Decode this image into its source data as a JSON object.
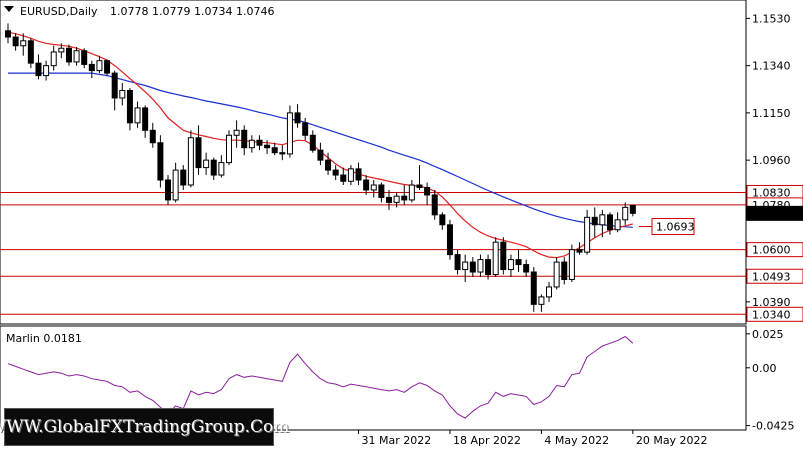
{
  "app": {
    "symbol_title": "EURUSD,Daily",
    "ohlc_text": "1.0778 1.0779 1.0734 1.0746",
    "indicator_title": "Marlin 0.0181",
    "watermark_text": "WWW.GlobalFXTradingGroup.Com"
  },
  "colors": {
    "bull": "#ffffff",
    "bear": "#000000",
    "ma_fast": "#e02020",
    "ma_slow": "#1a2fd0",
    "level": "#cc0000",
    "oscillator": "#8a1f9e"
  },
  "chart_data": [
    {
      "type": "candlestick",
      "title": "EURUSD,Daily",
      "ylim": [
        1.0305,
        1.16
      ],
      "y_ticks": [
        "1.1530",
        "1.1340",
        "1.1150",
        "1.0960",
        "1.0390"
      ],
      "x_ticks": [
        {
          "label": "31 Mar 2022",
          "index": 46
        },
        {
          "label": "18 Apr 2022",
          "index": 58
        },
        {
          "label": "4 May 2022",
          "index": 70
        },
        {
          "label": "20 May 2022",
          "index": 82
        }
      ],
      "price_labels": [
        {
          "label": "1.0830",
          "value": 1.083,
          "style": "level"
        },
        {
          "label": "1.0780",
          "value": 1.078,
          "style": "level"
        },
        {
          "label": "1.0746",
          "value": 1.0746,
          "style": "current"
        },
        {
          "label": "1.0600",
          "value": 1.06,
          "style": "level"
        },
        {
          "label": "1.0493",
          "value": 1.0493,
          "style": "level"
        },
        {
          "label": "1.0340",
          "value": 1.034,
          "style": "level"
        }
      ],
      "levels": [
        1.083,
        1.078,
        1.06,
        1.0493,
        1.034
      ],
      "annotation": {
        "label": "1.0693",
        "value": 1.0693
      },
      "candles": [
        [
          1.148,
          1.151,
          1.143,
          1.1455
        ],
        [
          1.1455,
          1.147,
          1.14,
          1.142
        ],
        [
          1.142,
          1.147,
          1.138,
          1.144
        ],
        [
          1.144,
          1.145,
          1.133,
          1.135
        ],
        [
          1.135,
          1.1385,
          1.1285,
          1.13
        ],
        [
          1.13,
          1.136,
          1.128,
          1.134
        ],
        [
          1.134,
          1.142,
          1.132,
          1.1395
        ],
        [
          1.1395,
          1.143,
          1.137,
          1.141
        ],
        [
          1.141,
          1.1425,
          1.134,
          1.1355
        ],
        [
          1.1355,
          1.1415,
          1.134,
          1.14
        ],
        [
          1.14,
          1.141,
          1.133,
          1.1345
        ],
        [
          1.1345,
          1.136,
          1.129,
          1.132
        ],
        [
          1.132,
          1.138,
          1.131,
          1.136
        ],
        [
          1.136,
          1.1365,
          1.13,
          1.131
        ],
        [
          1.131,
          1.132,
          1.116,
          1.121
        ],
        [
          1.121,
          1.127,
          1.118,
          1.124
        ],
        [
          1.124,
          1.125,
          1.108,
          1.111
        ],
        [
          1.111,
          1.1195,
          1.109,
          1.117
        ],
        [
          1.117,
          1.118,
          1.105,
          1.108
        ],
        [
          1.108,
          1.111,
          1.101,
          1.103
        ],
        [
          1.103,
          1.106,
          1.085,
          1.088
        ],
        [
          1.088,
          1.09,
          1.078,
          1.08
        ],
        [
          1.08,
          1.095,
          1.079,
          1.092
        ],
        [
          1.092,
          1.094,
          1.084,
          1.086
        ],
        [
          1.086,
          1.108,
          1.085,
          1.105
        ],
        [
          1.105,
          1.11,
          1.09,
          1.093
        ],
        [
          1.093,
          1.099,
          1.09,
          1.096
        ],
        [
          1.096,
          1.097,
          1.088,
          1.09
        ],
        [
          1.09,
          1.098,
          1.089,
          1.095
        ],
        [
          1.095,
          1.108,
          1.094,
          1.106
        ],
        [
          1.106,
          1.112,
          1.101,
          1.108
        ],
        [
          1.108,
          1.11,
          1.098,
          1.101
        ],
        [
          1.101,
          1.106,
          1.099,
          1.104
        ],
        [
          1.104,
          1.106,
          1.1,
          1.102
        ],
        [
          1.102,
          1.104,
          1.0985,
          1.101
        ],
        [
          1.101,
          1.103,
          1.098,
          1.099
        ],
        [
          1.099,
          1.102,
          1.096,
          1.0985
        ],
        [
          1.0985,
          1.118,
          1.097,
          1.115
        ],
        [
          1.115,
          1.1185,
          1.109,
          1.111
        ],
        [
          1.111,
          1.113,
          1.104,
          1.106
        ],
        [
          1.106,
          1.108,
          1.099,
          1.1
        ],
        [
          1.1,
          1.103,
          1.094,
          1.096
        ],
        [
          1.096,
          1.099,
          1.09,
          1.092
        ],
        [
          1.092,
          1.094,
          1.088,
          1.09
        ],
        [
          1.09,
          1.093,
          1.086,
          1.0875
        ],
        [
          1.0875,
          1.094,
          1.086,
          1.0925
        ],
        [
          1.0925,
          1.095,
          1.086,
          1.088
        ],
        [
          1.088,
          1.09,
          1.082,
          1.084
        ],
        [
          1.084,
          1.088,
          1.081,
          1.086
        ],
        [
          1.086,
          1.087,
          1.079,
          1.081
        ],
        [
          1.081,
          1.084,
          1.076,
          1.079
        ],
        [
          1.079,
          1.083,
          1.077,
          1.0815
        ],
        [
          1.0815,
          1.086,
          1.078,
          1.08
        ],
        [
          1.08,
          1.088,
          1.079,
          1.086
        ],
        [
          1.086,
          1.094,
          1.084,
          1.085
        ],
        [
          1.085,
          1.087,
          1.078,
          1.082
        ],
        [
          1.082,
          1.084,
          1.072,
          1.074
        ],
        [
          1.074,
          1.075,
          1.068,
          1.07
        ],
        [
          1.07,
          1.072,
          1.056,
          1.058
        ],
        [
          1.058,
          1.06,
          1.05,
          1.052
        ],
        [
          1.052,
          1.058,
          1.047,
          1.055
        ],
        [
          1.055,
          1.057,
          1.049,
          1.051
        ],
        [
          1.051,
          1.058,
          1.049,
          1.056
        ],
        [
          1.056,
          1.058,
          1.048,
          1.05
        ],
        [
          1.05,
          1.065,
          1.049,
          1.063
        ],
        [
          1.063,
          1.065,
          1.05,
          1.052
        ],
        [
          1.052,
          1.058,
          1.049,
          1.056
        ],
        [
          1.056,
          1.06,
          1.051,
          1.054
        ],
        [
          1.054,
          1.056,
          1.049,
          1.051
        ],
        [
          1.051,
          1.053,
          1.035,
          1.038
        ],
        [
          1.038,
          1.042,
          1.035,
          1.041
        ],
        [
          1.041,
          1.047,
          1.039,
          1.045
        ],
        [
          1.045,
          1.057,
          1.044,
          1.055
        ],
        [
          1.055,
          1.057,
          1.046,
          1.048
        ],
        [
          1.048,
          1.062,
          1.047,
          1.06
        ],
        [
          1.06,
          1.063,
          1.058,
          1.059
        ],
        [
          1.059,
          1.076,
          1.058,
          1.073
        ],
        [
          1.073,
          1.077,
          1.065,
          1.07
        ],
        [
          1.07,
          1.076,
          1.065,
          1.074
        ],
        [
          1.074,
          1.075,
          1.066,
          1.068
        ],
        [
          1.068,
          1.075,
          1.067,
          1.072
        ],
        [
          1.072,
          1.079,
          1.07,
          1.077
        ],
        [
          1.0778,
          1.0779,
          1.0734,
          1.0746
        ]
      ],
      "ma_fast": [
        1.1475,
        1.1468,
        1.146,
        1.145,
        1.1438,
        1.143,
        1.1425,
        1.1422,
        1.1418,
        1.141,
        1.14,
        1.1388,
        1.1376,
        1.1362,
        1.134,
        1.1315,
        1.1288,
        1.1262,
        1.1235,
        1.1205,
        1.117,
        1.113,
        1.1105,
        1.108,
        1.107,
        1.1062,
        1.1055,
        1.1048,
        1.1042,
        1.104,
        1.104,
        1.1038,
        1.1035,
        1.1032,
        1.103,
        1.1026,
        1.1022,
        1.103,
        1.104,
        1.1038,
        1.102,
        1.0995,
        1.097,
        1.0945,
        1.0925,
        1.0915,
        1.0905,
        1.0895,
        1.0888,
        1.0882,
        1.0875,
        1.0868,
        1.0862,
        1.0858,
        1.0855,
        1.0848,
        1.0835,
        1.0812,
        1.078,
        1.0745,
        1.0715,
        1.069,
        1.067,
        1.0655,
        1.0645,
        1.0638,
        1.063,
        1.0622,
        1.0612,
        1.0595,
        1.058,
        1.057,
        1.0568,
        1.0575,
        1.059,
        1.0608,
        1.0628,
        1.0648,
        1.0665,
        1.0678,
        1.0688,
        1.0696,
        1.0703
      ],
      "ma_slow": [
        1.131,
        1.131,
        1.131,
        1.131,
        1.131,
        1.131,
        1.131,
        1.131,
        1.131,
        1.131,
        1.131,
        1.131,
        1.1305,
        1.13,
        1.1292,
        1.1284,
        1.1276,
        1.1268,
        1.126,
        1.125,
        1.124,
        1.1232,
        1.1225,
        1.1218,
        1.1212,
        1.1205,
        1.1198,
        1.1192,
        1.1186,
        1.118,
        1.1174,
        1.1168,
        1.116,
        1.1152,
        1.1145,
        1.1138,
        1.113,
        1.1125,
        1.112,
        1.1112,
        1.1102,
        1.1092,
        1.1082,
        1.1072,
        1.1062,
        1.1052,
        1.1042,
        1.1032,
        1.1022,
        1.1012,
        1.1,
        1.099,
        1.098,
        1.097,
        1.096,
        1.0948,
        1.0935,
        1.0922,
        1.0908,
        1.0894,
        1.088,
        1.0866,
        1.0852,
        1.0838,
        1.0825,
        1.0812,
        1.08,
        1.0788,
        1.0776,
        1.0764,
        1.0753,
        1.0743,
        1.0734,
        1.0726,
        1.0719,
        1.0713,
        1.0708,
        1.0704,
        1.07,
        1.0697,
        1.0694,
        1.0692,
        1.069
      ]
    },
    {
      "type": "line",
      "title": "Marlin 0.0181",
      "ylim": [
        -0.045,
        0.03
      ],
      "y_ticks": [
        {
          "label": "0.025",
          "value": 0.025
        },
        {
          "label": "0.00",
          "value": 0.0
        },
        {
          "label": "-0.0425",
          "value": -0.0425
        }
      ],
      "series": [
        {
          "values": [
            0.003,
            0.001,
            -0.001,
            -0.003,
            -0.005,
            -0.004,
            -0.003,
            -0.004,
            -0.006,
            -0.005,
            -0.006,
            -0.008,
            -0.009,
            -0.01,
            -0.013,
            -0.014,
            -0.018,
            -0.017,
            -0.021,
            -0.024,
            -0.029,
            -0.034,
            -0.028,
            -0.03,
            -0.017,
            -0.02,
            -0.018,
            -0.019,
            -0.016,
            -0.008,
            -0.005,
            -0.007,
            -0.006,
            -0.007,
            -0.008,
            -0.009,
            -0.01,
            0.004,
            0.01,
            0.003,
            -0.003,
            -0.008,
            -0.011,
            -0.012,
            -0.014,
            -0.012,
            -0.013,
            -0.014,
            -0.015,
            -0.016,
            -0.017,
            -0.016,
            -0.018,
            -0.014,
            -0.011,
            -0.013,
            -0.017,
            -0.02,
            -0.028,
            -0.034,
            -0.037,
            -0.032,
            -0.028,
            -0.026,
            -0.018,
            -0.021,
            -0.019,
            -0.02,
            -0.021,
            -0.027,
            -0.025,
            -0.021,
            -0.013,
            -0.014,
            -0.005,
            -0.004,
            0.008,
            0.012,
            0.016,
            0.018,
            0.02,
            0.023,
            0.018
          ]
        }
      ]
    }
  ]
}
